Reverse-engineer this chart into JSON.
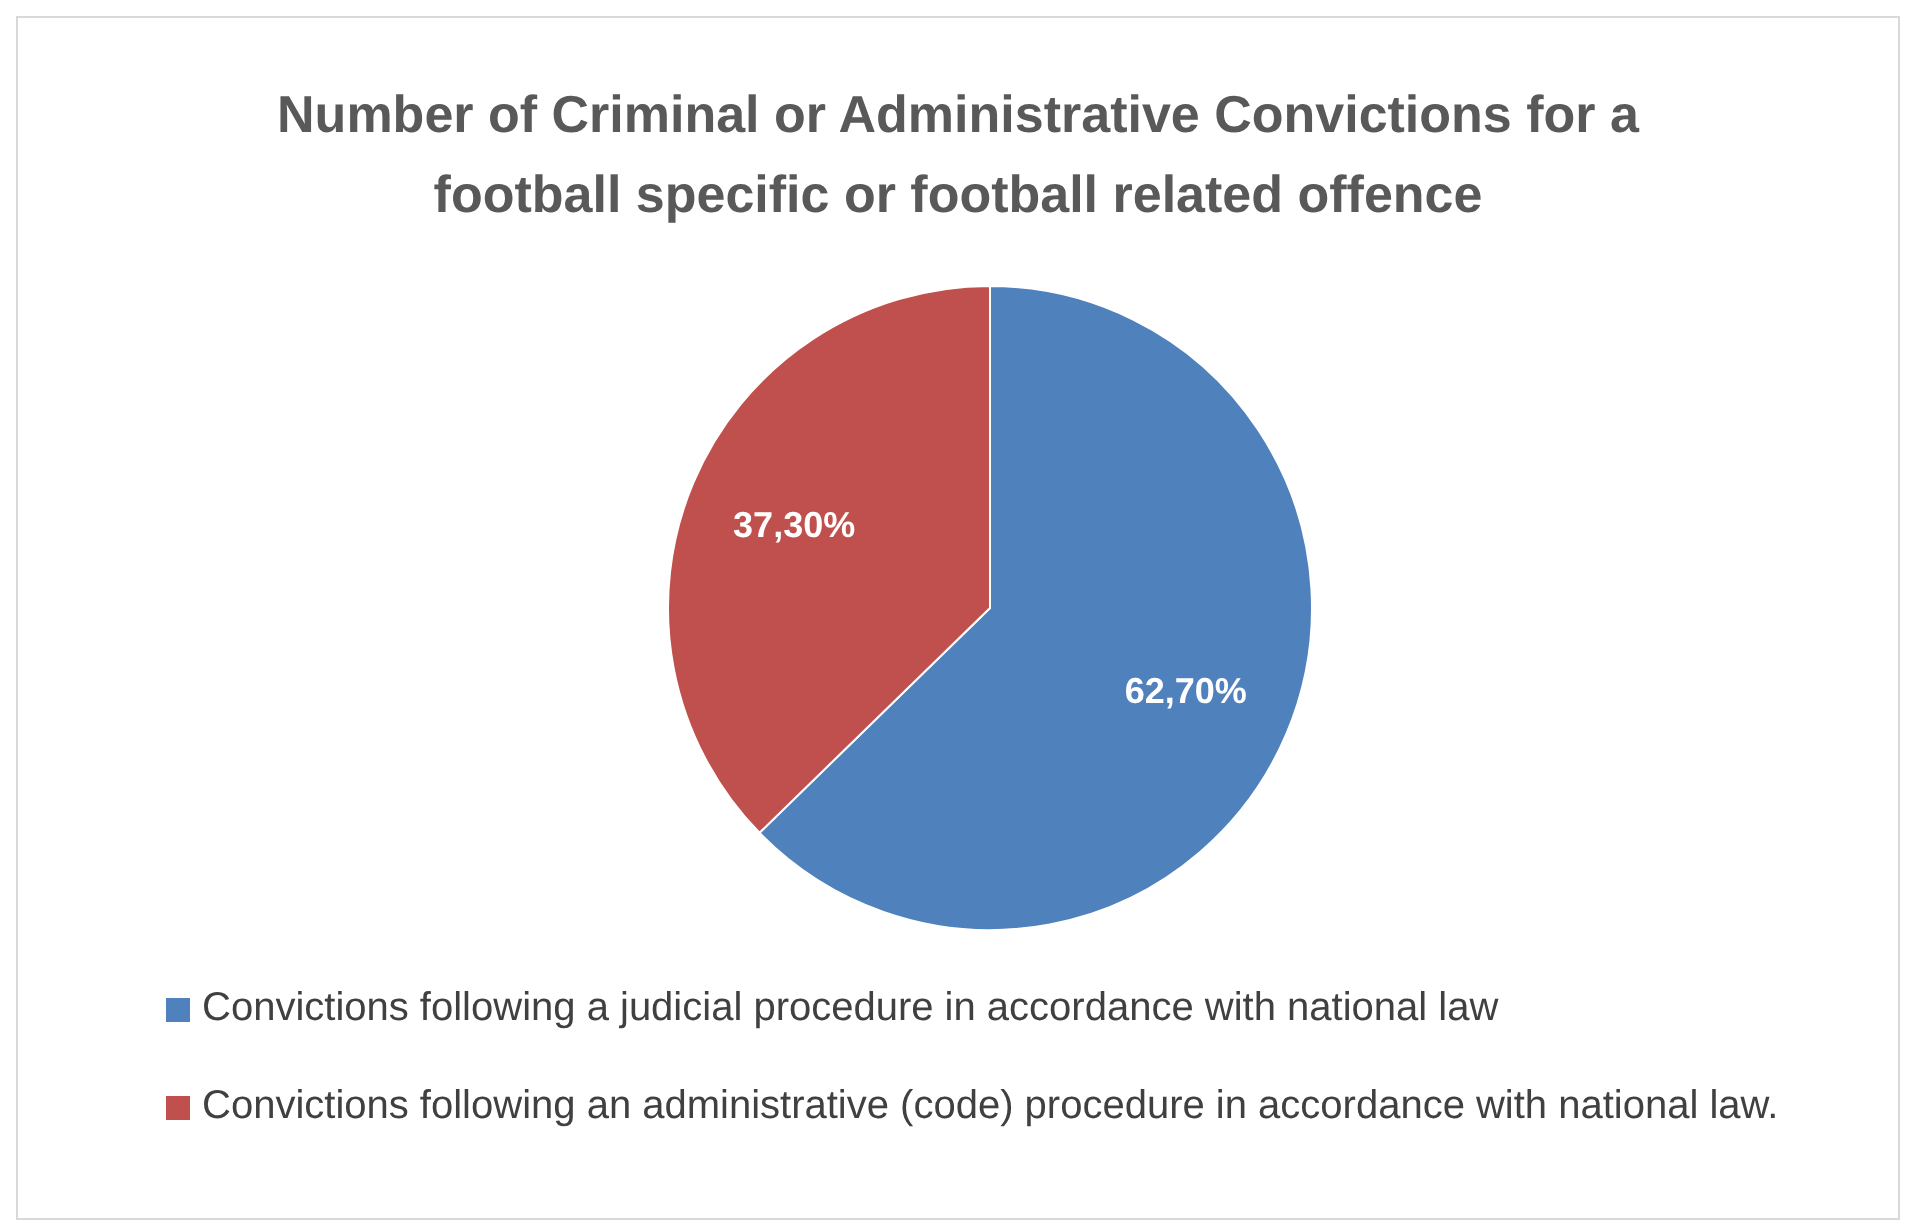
{
  "chart_data": {
    "type": "pie",
    "title": "Number of Criminal or Administrative Convictions for a football specific or football related offence",
    "categories": [
      "Convictions following a judicial procedure in accordance with national law",
      "Convictions following an administrative (code) procedure in accordance with national law."
    ],
    "values": [
      62.7,
      37.3
    ],
    "colors": [
      "#4f81bd",
      "#c0504d"
    ],
    "value_labels": [
      "62,70%",
      "37,30%"
    ],
    "legend": "bottom"
  }
}
